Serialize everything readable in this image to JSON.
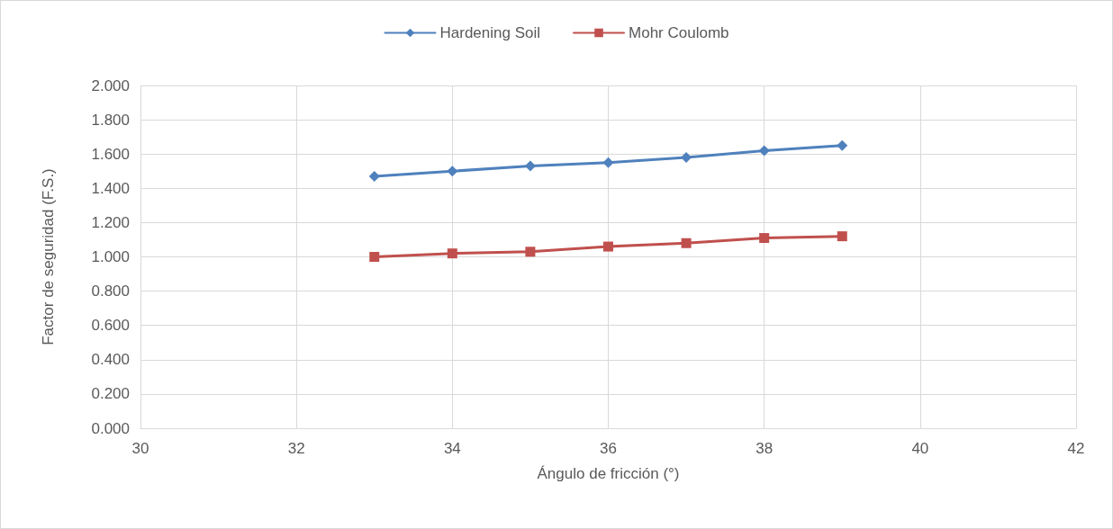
{
  "chart_data": {
    "type": "line",
    "xlabel": "Ángulo de fricción (°)",
    "ylabel": "Factor de seguridad (F.S.)",
    "x": [
      33,
      34,
      35,
      36,
      37,
      38,
      39
    ],
    "series": [
      {
        "name": "Hardening Soil",
        "color": "#4f81bd",
        "marker": "diamond",
        "values": [
          1.47,
          1.5,
          1.53,
          1.55,
          1.58,
          1.62,
          1.65
        ]
      },
      {
        "name": "Mohr Coulomb",
        "color": "#c0504d",
        "marker": "square",
        "values": [
          1.0,
          1.02,
          1.03,
          1.06,
          1.08,
          1.11,
          1.12
        ]
      }
    ],
    "xlim": [
      30,
      42
    ],
    "xticks": [
      30,
      32,
      34,
      36,
      38,
      40,
      42
    ],
    "ylim": [
      0,
      2
    ],
    "yticks": [
      {
        "value": 0,
        "label": "0.000"
      },
      {
        "value": 0.2,
        "label": "0.200"
      },
      {
        "value": 0.4,
        "label": "0.400"
      },
      {
        "value": 0.6,
        "label": "0.600"
      },
      {
        "value": 0.8,
        "label": "0.800"
      },
      {
        "value": 1,
        "label": "1.000"
      },
      {
        "value": 1.2,
        "label": "1.200"
      },
      {
        "value": 1.4,
        "label": "1.400"
      },
      {
        "value": 1.6,
        "label": "1.600"
      },
      {
        "value": 1.8,
        "label": "1.800"
      },
      {
        "value": 2,
        "label": "2.000"
      }
    ],
    "grid": true,
    "legend": "top",
    "line_style": "solid"
  }
}
